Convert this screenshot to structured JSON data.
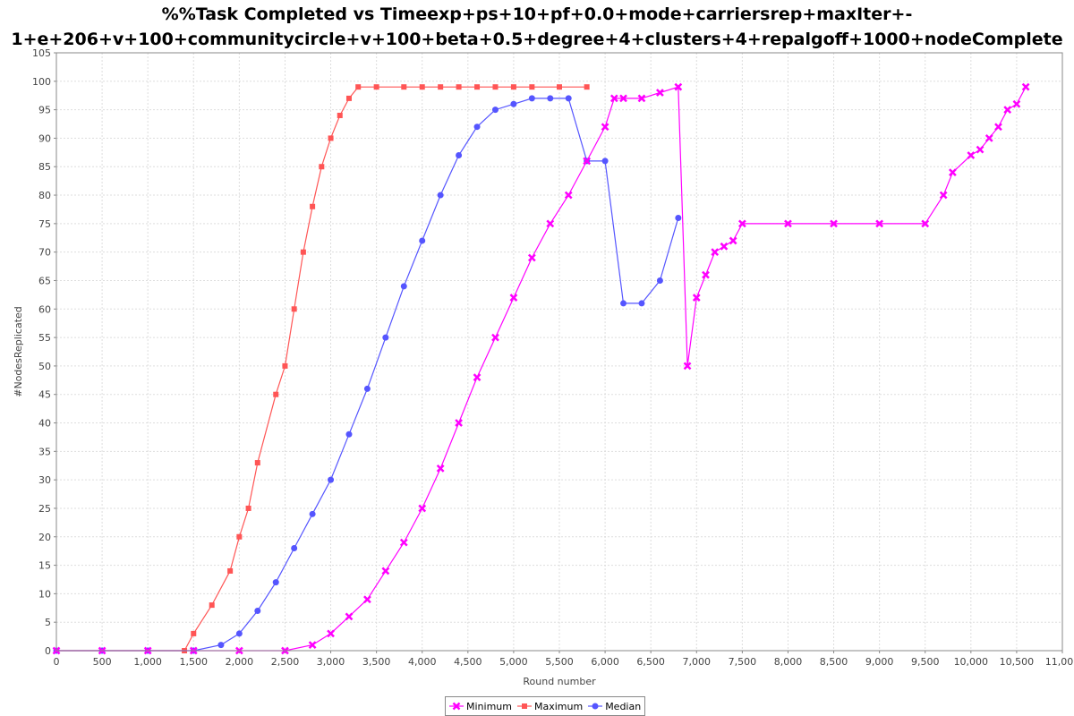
{
  "chart_data": {
    "type": "line",
    "title_line1": "%%Task Completed vs Timeexp+ps+10+pf+0.0+mode+carriersrep+maxIter+-",
    "title_line2": "1+e+206+v+100+communitycircle+v+100+beta+0.5+degree+4+clusters+4+repalgoff+1000+nodeComplete",
    "xlabel": "Round number",
    "ylabel": "#NodesReplicated",
    "xlim": [
      0,
      11000
    ],
    "ylim": [
      0,
      105
    ],
    "x_ticks": [
      "0",
      "500",
      "1,000",
      "1,500",
      "2,000",
      "2,500",
      "3,000",
      "3,500",
      "4,000",
      "4,500",
      "5,000",
      "5,500",
      "6,000",
      "6,500",
      "7,000",
      "7,500",
      "8,000",
      "8,500",
      "9,000",
      "9,500",
      "10,000",
      "10,500",
      "11,000"
    ],
    "y_ticks": [
      "0",
      "5",
      "10",
      "15",
      "20",
      "25",
      "30",
      "35",
      "40",
      "45",
      "50",
      "55",
      "60",
      "65",
      "70",
      "75",
      "80",
      "85",
      "90",
      "95",
      "100",
      "105"
    ],
    "grid": true,
    "legend_position": "bottom",
    "series": [
      {
        "name": "Minimum",
        "color": "#ff00ff",
        "marker": "x",
        "points": [
          [
            0,
            0
          ],
          [
            500,
            0
          ],
          [
            1000,
            0
          ],
          [
            1500,
            0
          ],
          [
            2000,
            0
          ],
          [
            2500,
            0
          ],
          [
            2800,
            1
          ],
          [
            3000,
            3
          ],
          [
            3200,
            6
          ],
          [
            3400,
            9
          ],
          [
            3600,
            14
          ],
          [
            3800,
            19
          ],
          [
            4000,
            25
          ],
          [
            4200,
            32
          ],
          [
            4400,
            40
          ],
          [
            4600,
            48
          ],
          [
            4800,
            55
          ],
          [
            5000,
            62
          ],
          [
            5200,
            69
          ],
          [
            5400,
            75
          ],
          [
            5600,
            80
          ],
          [
            5800,
            86
          ],
          [
            6000,
            92
          ],
          [
            6100,
            97
          ],
          [
            6200,
            97
          ],
          [
            6400,
            97
          ],
          [
            6600,
            98
          ],
          [
            6800,
            99
          ],
          [
            6900,
            50
          ],
          [
            7000,
            62
          ],
          [
            7100,
            66
          ],
          [
            7200,
            70
          ],
          [
            7300,
            71
          ],
          [
            7400,
            72
          ],
          [
            7500,
            75
          ],
          [
            8000,
            75
          ],
          [
            8500,
            75
          ],
          [
            9000,
            75
          ],
          [
            9500,
            75
          ],
          [
            9700,
            80
          ],
          [
            9800,
            84
          ],
          [
            10000,
            87
          ],
          [
            10100,
            88
          ],
          [
            10200,
            90
          ],
          [
            10300,
            92
          ],
          [
            10400,
            95
          ],
          [
            10500,
            96
          ],
          [
            10600,
            99
          ]
        ]
      },
      {
        "name": "Maximum",
        "color": "#ff5555",
        "marker": "square",
        "points": [
          [
            0,
            0
          ],
          [
            500,
            0
          ],
          [
            1000,
            0
          ],
          [
            1400,
            0
          ],
          [
            1500,
            3
          ],
          [
            1700,
            8
          ],
          [
            1900,
            14
          ],
          [
            2000,
            20
          ],
          [
            2100,
            25
          ],
          [
            2200,
            33
          ],
          [
            2400,
            45
          ],
          [
            2500,
            50
          ],
          [
            2600,
            60
          ],
          [
            2700,
            70
          ],
          [
            2800,
            78
          ],
          [
            2900,
            85
          ],
          [
            3000,
            90
          ],
          [
            3100,
            94
          ],
          [
            3200,
            97
          ],
          [
            3300,
            99
          ],
          [
            3500,
            99
          ],
          [
            3800,
            99
          ],
          [
            4000,
            99
          ],
          [
            4200,
            99
          ],
          [
            4400,
            99
          ],
          [
            4600,
            99
          ],
          [
            4800,
            99
          ],
          [
            5000,
            99
          ],
          [
            5200,
            99
          ],
          [
            5500,
            99
          ],
          [
            5800,
            99
          ]
        ]
      },
      {
        "name": "Median",
        "color": "#5555ff",
        "marker": "circle",
        "points": [
          [
            0,
            0
          ],
          [
            500,
            0
          ],
          [
            1000,
            0
          ],
          [
            1500,
            0
          ],
          [
            1800,
            1
          ],
          [
            2000,
            3
          ],
          [
            2200,
            7
          ],
          [
            2400,
            12
          ],
          [
            2600,
            18
          ],
          [
            2800,
            24
          ],
          [
            3000,
            30
          ],
          [
            3200,
            38
          ],
          [
            3400,
            46
          ],
          [
            3600,
            55
          ],
          [
            3800,
            64
          ],
          [
            4000,
            72
          ],
          [
            4200,
            80
          ],
          [
            4400,
            87
          ],
          [
            4600,
            92
          ],
          [
            4800,
            95
          ],
          [
            5000,
            96
          ],
          [
            5200,
            97
          ],
          [
            5400,
            97
          ],
          [
            5600,
            97
          ],
          [
            5800,
            86
          ],
          [
            6000,
            86
          ],
          [
            6200,
            61
          ],
          [
            6400,
            61
          ],
          [
            6600,
            65
          ],
          [
            6800,
            76
          ]
        ]
      }
    ]
  }
}
